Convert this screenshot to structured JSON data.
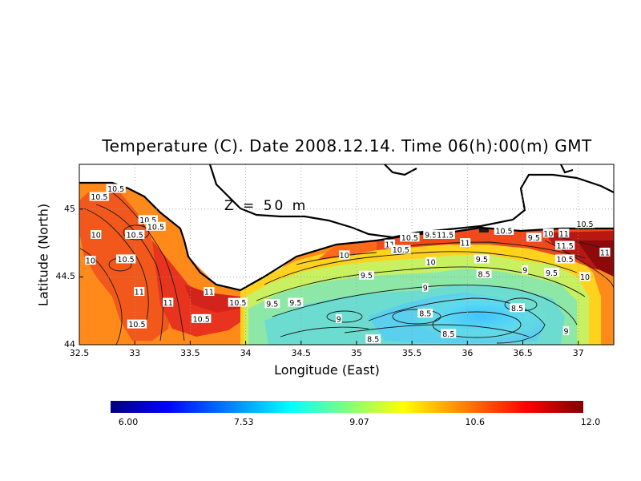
{
  "title": "Temperature (C). Date 2008.12.14. Time 06(h):00(m) GMT",
  "depth_label": "Z = 50 m",
  "axes": {
    "xlabel": "Longitude (East)",
    "ylabel": "Latitude (North)",
    "x_ticks": [
      "32.5",
      "33",
      "33.5",
      "34",
      "34.5",
      "35",
      "35.5",
      "36",
      "36.5",
      "37"
    ],
    "y_ticks": [
      "44",
      "44.5",
      "45"
    ],
    "xlim": [
      32.5,
      37.32
    ],
    "ylim": [
      44.0,
      45.33
    ]
  },
  "colorbar": {
    "ticks": [
      "6.00",
      "7.53",
      "9.07",
      "10.6",
      "12.0"
    ],
    "min": 6.0,
    "max": 12.0,
    "colors": [
      "#00007f",
      "#0000ff",
      "#007fff",
      "#00ffff",
      "#7fff7f",
      "#ffff00",
      "#ff7f00",
      "#ff0000",
      "#7f0000"
    ]
  },
  "contour_labels": [
    {
      "text": "10.5",
      "lon": 32.68,
      "lat": 45.09
    },
    {
      "text": "10.5",
      "lon": 32.83,
      "lat": 45.15
    },
    {
      "text": "10",
      "lon": 32.65,
      "lat": 44.81
    },
    {
      "text": "10.5",
      "lon": 33.0,
      "lat": 44.81
    },
    {
      "text": "10.5",
      "lon": 33.12,
      "lat": 44.92
    },
    {
      "text": "10.5",
      "lon": 33.19,
      "lat": 44.87
    },
    {
      "text": "10",
      "lon": 32.6,
      "lat": 44.62
    },
    {
      "text": "10.5",
      "lon": 32.92,
      "lat": 44.63
    },
    {
      "text": "11",
      "lon": 33.04,
      "lat": 44.39
    },
    {
      "text": "11",
      "lon": 33.3,
      "lat": 44.31
    },
    {
      "text": "10.5",
      "lon": 33.02,
      "lat": 44.15
    },
    {
      "text": "10.5",
      "lon": 33.6,
      "lat": 44.19
    },
    {
      "text": "11",
      "lon": 33.67,
      "lat": 44.39
    },
    {
      "text": "10.5",
      "lon": 33.93,
      "lat": 44.31
    },
    {
      "text": "9.5",
      "lon": 34.24,
      "lat": 44.3
    },
    {
      "text": "9.5",
      "lon": 34.45,
      "lat": 44.31
    },
    {
      "text": "10",
      "lon": 34.89,
      "lat": 44.66
    },
    {
      "text": "9.5",
      "lon": 35.09,
      "lat": 44.51
    },
    {
      "text": "9",
      "lon": 34.84,
      "lat": 44.19
    },
    {
      "text": "8.5",
      "lon": 35.15,
      "lat": 44.04
    },
    {
      "text": "11",
      "lon": 35.3,
      "lat": 44.74
    },
    {
      "text": "10.5",
      "lon": 35.4,
      "lat": 44.7
    },
    {
      "text": "10.5",
      "lon": 35.48,
      "lat": 44.79
    },
    {
      "text": "9.5",
      "lon": 35.67,
      "lat": 44.81
    },
    {
      "text": "11.5",
      "lon": 35.8,
      "lat": 44.81
    },
    {
      "text": "11",
      "lon": 35.98,
      "lat": 44.75
    },
    {
      "text": "10",
      "lon": 35.67,
      "lat": 44.61
    },
    {
      "text": "9",
      "lon": 35.62,
      "lat": 44.42
    },
    {
      "text": "8.5",
      "lon": 35.62,
      "lat": 44.23
    },
    {
      "text": "9.5",
      "lon": 36.13,
      "lat": 44.63
    },
    {
      "text": "8.5",
      "lon": 36.15,
      "lat": 44.52
    },
    {
      "text": "8.5",
      "lon": 35.83,
      "lat": 44.08
    },
    {
      "text": "8.5",
      "lon": 36.45,
      "lat": 44.27
    },
    {
      "text": "9",
      "lon": 36.52,
      "lat": 44.55
    },
    {
      "text": "10.5",
      "lon": 36.33,
      "lat": 44.84
    },
    {
      "text": "9.5",
      "lon": 36.6,
      "lat": 44.79
    },
    {
      "text": "10",
      "lon": 36.73,
      "lat": 44.82
    },
    {
      "text": "11",
      "lon": 36.87,
      "lat": 44.82
    },
    {
      "text": "11.5",
      "lon": 36.88,
      "lat": 44.73
    },
    {
      "text": "10.5",
      "lon": 36.88,
      "lat": 44.63
    },
    {
      "text": "9.5",
      "lon": 36.76,
      "lat": 44.53
    },
    {
      "text": "10",
      "lon": 37.06,
      "lat": 44.5
    },
    {
      "text": "10.5",
      "lon": 37.06,
      "lat": 44.89
    },
    {
      "text": "11",
      "lon": 37.24,
      "lat": 44.68
    },
    {
      "text": "9",
      "lon": 36.89,
      "lat": 44.1
    }
  ]
}
